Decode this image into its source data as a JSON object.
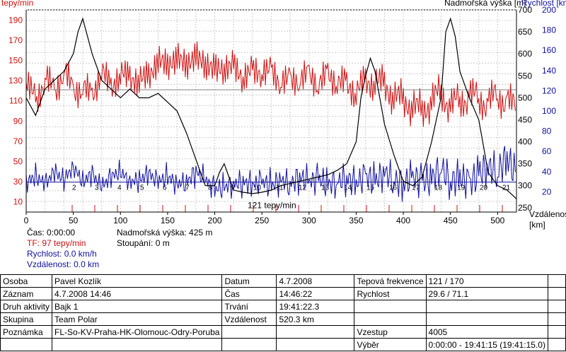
{
  "chart_data": {
    "type": "line",
    "x": {
      "label": "Vzdálenost [km]",
      "ticks": [
        0,
        50,
        100,
        150,
        200,
        250,
        300,
        350,
        400,
        450,
        500
      ],
      "range": [
        0,
        520
      ]
    },
    "y_heart": {
      "label": "tepy/min",
      "ticks": [
        190,
        170,
        150,
        130,
        110,
        90,
        70,
        50,
        30,
        10
      ],
      "range": [
        0,
        200
      ]
    },
    "y_altitude": {
      "label": "Nadmořská výška [m]",
      "ticks": [
        700,
        650,
        600,
        550,
        500,
        450,
        400,
        350,
        300,
        250
      ],
      "range": [
        240,
        700
      ]
    },
    "y_speed": {
      "label": "Rychlost [km/h]",
      "ticks": [
        200,
        180,
        160,
        140,
        120,
        100,
        80,
        60,
        40,
        20
      ],
      "range": [
        0,
        200
      ]
    },
    "series": [
      {
        "name": "TF",
        "color": "#d01010",
        "x": [
          0,
          10,
          20,
          30,
          40,
          50,
          60,
          70,
          80,
          90,
          100,
          110,
          120,
          130,
          140,
          150,
          160,
          170,
          180,
          190,
          200,
          210,
          220,
          230,
          240,
          250,
          260,
          270,
          280,
          290,
          300,
          310,
          320,
          330,
          340,
          350,
          360,
          370,
          380,
          390,
          400,
          410,
          420,
          430,
          440,
          450,
          460,
          470,
          480,
          490,
          500,
          510,
          520
        ],
        "values": [
          120,
          115,
          128,
          124,
          135,
          125,
          118,
          120,
          135,
          128,
          132,
          138,
          125,
          140,
          145,
          150,
          148,
          150,
          150,
          150,
          138,
          145,
          142,
          135,
          138,
          140,
          138,
          130,
          130,
          132,
          135,
          128,
          135,
          130,
          125,
          120,
          128,
          130,
          125,
          115,
          110,
          105,
          100,
          110,
          118,
          105,
          110,
          115,
          112,
          108,
          115,
          110,
          100
        ]
      },
      {
        "name": "Nadmořská výška",
        "color": "#000000",
        "x": [
          0,
          10,
          20,
          30,
          40,
          50,
          55,
          60,
          65,
          70,
          80,
          90,
          100,
          110,
          120,
          130,
          140,
          150,
          160,
          170,
          180,
          190,
          200,
          205,
          210,
          215,
          220,
          230,
          240,
          250,
          260,
          270,
          280,
          290,
          300,
          310,
          320,
          330,
          340,
          350,
          355,
          360,
          365,
          370,
          380,
          390,
          400,
          410,
          420,
          430,
          440,
          445,
          450,
          455,
          460,
          470,
          480,
          490,
          500,
          510,
          520
        ],
        "values": [
          500,
          460,
          520,
          540,
          560,
          600,
          650,
          680,
          640,
          600,
          540,
          520,
          500,
          520,
          500,
          500,
          510,
          490,
          470,
          420,
          360,
          300,
          300,
          330,
          350,
          320,
          290,
          285,
          282,
          285,
          290,
          300,
          305,
          310,
          315,
          320,
          325,
          335,
          350,
          400,
          500,
          550,
          590,
          560,
          440,
          370,
          310,
          300,
          320,
          400,
          500,
          650,
          680,
          640,
          560,
          500,
          450,
          330,
          300,
          290,
          270
        ]
      },
      {
        "name": "Rychlost",
        "color": "#1010a0",
        "x": [
          0,
          10,
          20,
          30,
          40,
          50,
          60,
          70,
          80,
          90,
          100,
          110,
          120,
          130,
          140,
          150,
          160,
          170,
          180,
          190,
          200,
          210,
          220,
          230,
          240,
          250,
          260,
          270,
          280,
          290,
          300,
          310,
          320,
          330,
          340,
          350,
          360,
          370,
          380,
          390,
          400,
          410,
          420,
          430,
          440,
          450,
          460,
          470,
          480,
          490,
          500,
          510,
          520
        ],
        "values": [
          30,
          35,
          28,
          40,
          32,
          45,
          30,
          38,
          25,
          35,
          40,
          30,
          32,
          38,
          30,
          35,
          28,
          30,
          40,
          32,
          22,
          25,
          28,
          30,
          27,
          30,
          26,
          32,
          28,
          35,
          30,
          33,
          28,
          30,
          34,
          28,
          36,
          30,
          40,
          32,
          28,
          35,
          30,
          33,
          45,
          30,
          35,
          28,
          38,
          45,
          40,
          55,
          35
        ]
      }
    ],
    "markers": [
      "2",
      "3",
      "4",
      "5",
      "6",
      "7",
      "8",
      "9",
      "10",
      "11",
      "12",
      "13",
      "14",
      "15",
      "16",
      "17",
      "18",
      "19",
      "20",
      "21"
    ],
    "avg_label": "121 tepy/min"
  },
  "info": {
    "cas_label": "Čas:",
    "cas_value": "0:00:00",
    "tf_label": "TF:",
    "tf_value": "97 tepy/min",
    "rychlost_label": "Rychlost:",
    "rychlost_value": "0.0 km/h",
    "vzdalenost_label": "Vzdálenost:",
    "vzdalenost_value": "0.0 km",
    "nadm_label": "Nadmořská výška:",
    "nadm_value": "425 m",
    "stoupani_label": "Stoupání:",
    "stoupani_value": "0 m"
  },
  "table": {
    "rows": [
      [
        "Osoba",
        "Pavel Kozlík",
        "Datum",
        "4.7.2008",
        "Tepová frekvence",
        "121 / 170",
        ""
      ],
      [
        "Záznam",
        "4.7.2008 14:46",
        "Čas",
        "14:46:22",
        "Rychlost",
        "29.6 / 71.1",
        ""
      ],
      [
        "Druh aktivity",
        "Bajk 1",
        "Trvání",
        "19:41:22.3",
        "",
        "",
        ""
      ],
      [
        "Skupina",
        "Team Polar",
        "Vzdálenost",
        "520.3 km",
        "",
        "",
        ""
      ],
      [
        "Poznámka",
        "FL-So-KV-Praha-HK-Olomouc-Odry-Poruba",
        "",
        "",
        "Vzestup",
        "4005",
        ""
      ],
      [
        "",
        "",
        "",
        "",
        "Výběr",
        "0:00:00 - 19:41:15 (19:41:15.0)",
        ""
      ]
    ]
  }
}
